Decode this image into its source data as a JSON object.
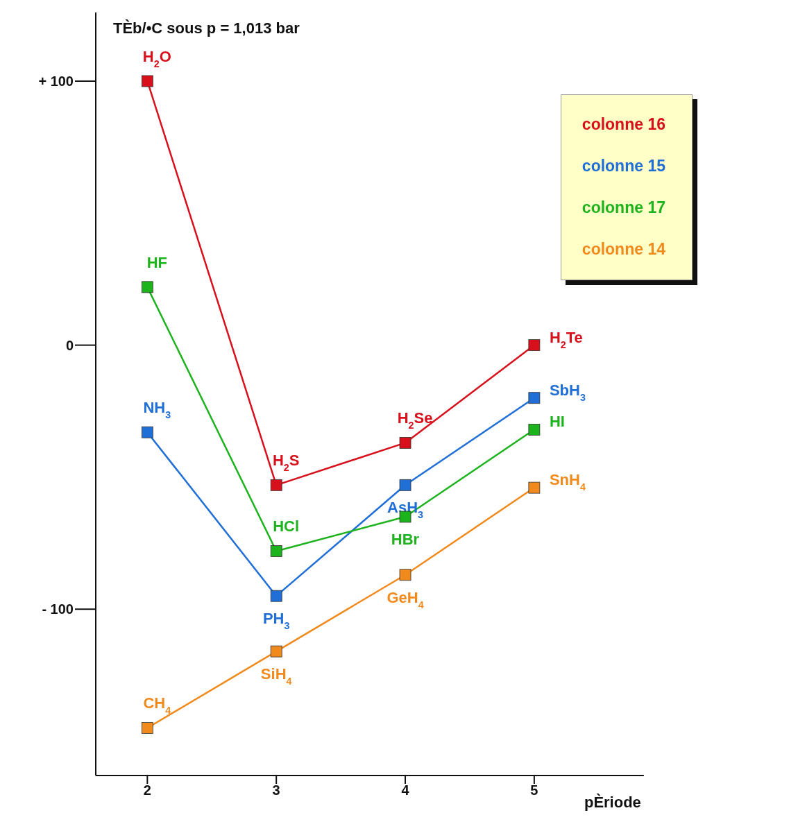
{
  "chart_data": {
    "type": "line",
    "ylabel": "TÈb/•C sous p = 1,013 bar",
    "xlabel": "pÈriode",
    "x": [
      2,
      3,
      4,
      5
    ],
    "series": [
      {
        "name": "colonne 16",
        "color": "#d8101c",
        "values": [
          100,
          -53,
          -37,
          0
        ]
      },
      {
        "name": "colonne 15",
        "color": "#1f6fd6",
        "values": [
          -33,
          -95,
          -53,
          -20
        ]
      },
      {
        "name": "colonne 17",
        "color": "#1db31d",
        "values": [
          22,
          -78,
          -65,
          -32
        ]
      },
      {
        "name": "colonne 14",
        "color": "#f08a1c",
        "values": [
          -145,
          -116,
          -87,
          -54
        ]
      }
    ],
    "xlim": [
      1.6,
      5.85
    ],
    "xticks": [
      2,
      3,
      4,
      5
    ],
    "ylim": [
      -163,
      126
    ],
    "yticks": [
      {
        "value": 100,
        "label": "+ 100"
      },
      0,
      {
        "value": -100,
        "label": "- 100"
      }
    ],
    "grid": false,
    "legend": "top right",
    "marker": "square",
    "line_style": "solid",
    "annotations": [
      {
        "text": "H$_{2}$O",
        "x": 2,
        "y": 100
      },
      {
        "text": "H$_{2}$S",
        "x": 3,
        "y": -53
      },
      {
        "text": "H$_{2}$Se",
        "x": 4,
        "y": -37
      },
      {
        "text": "H$_{2}$Te",
        "x": 5,
        "y": 0
      },
      {
        "text": "NH$_{3}$",
        "x": 2,
        "y": -33
      },
      {
        "text": "PH$_{3}$",
        "x": 3,
        "y": -95
      },
      {
        "text": "AsH$_{3}$",
        "x": 4,
        "y": -53
      },
      {
        "text": "SbH$_{3}$",
        "x": 5,
        "y": -20
      },
      {
        "text": "HF",
        "x": 2,
        "y": 22
      },
      {
        "text": "HCl",
        "x": 3,
        "y": -78
      },
      {
        "text": "HBr",
        "x": 4,
        "y": -65
      },
      {
        "text": "HI",
        "x": 5,
        "y": -32
      },
      {
        "text": "CH$_{4}$",
        "x": 2,
        "y": -145
      },
      {
        "text": "SiH$_{4}$",
        "x": 3,
        "y": -116
      },
      {
        "text": "GeH$_{4}$",
        "x": 4,
        "y": -87
      },
      {
        "text": "SnH$_{4}$",
        "x": 5,
        "y": -54
      }
    ]
  }
}
